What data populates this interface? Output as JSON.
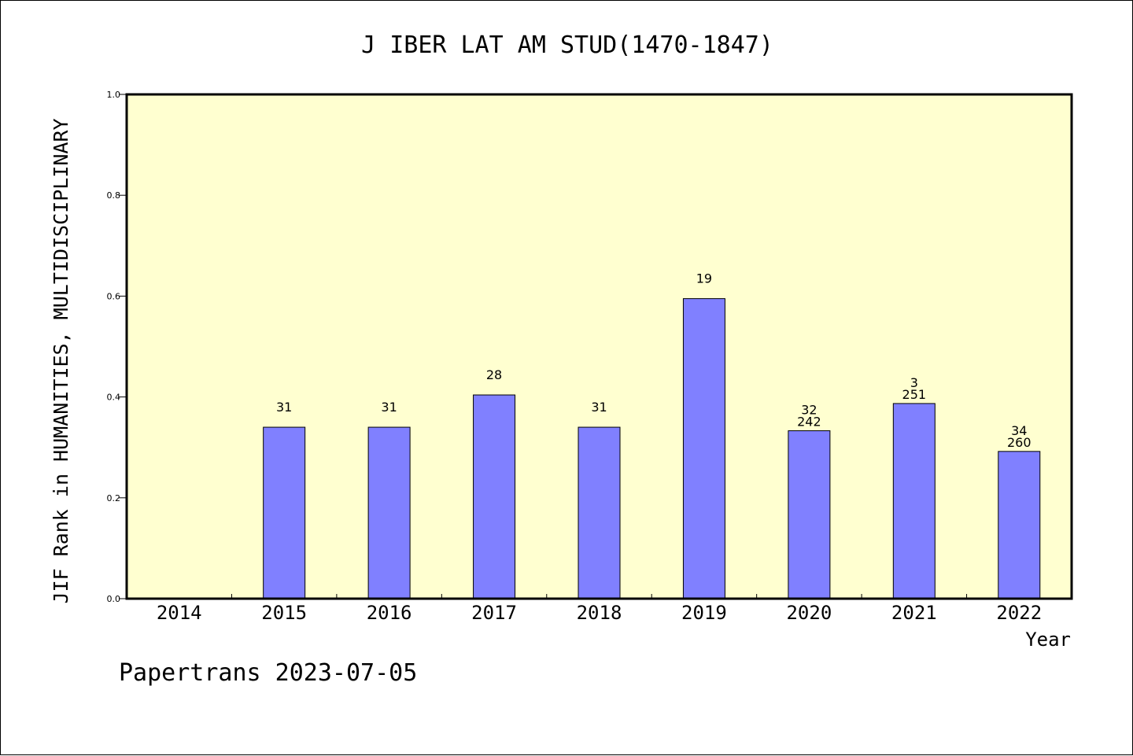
{
  "chart_data": {
    "type": "bar",
    "title": "J IBER LAT AM STUD(1470-1847)",
    "xlabel": "Year",
    "ylabel": "JIF Rank in HUMANITIES, MULTIDISCIPLINARY",
    "ylim": [
      0,
      1.0
    ],
    "yticks": [
      "0.0",
      "0.2",
      "0.4",
      "0.6",
      "0.8",
      "1.0"
    ],
    "grid": false,
    "categories": [
      "2014",
      "2015",
      "2016",
      "2017",
      "2018",
      "2019",
      "2020",
      "2021",
      "2022"
    ],
    "values": [
      null,
      0.34,
      0.34,
      0.404,
      0.34,
      0.595,
      0.333,
      0.387,
      0.292
    ],
    "bar_labels": [
      [],
      [
        "31"
      ],
      [
        "31"
      ],
      [
        "28"
      ],
      [
        "31"
      ],
      [
        "19"
      ],
      [
        "32",
        "242"
      ],
      [
        "3",
        "251"
      ],
      [
        "34",
        "260"
      ]
    ],
    "colors": {
      "bar": "#8080ff",
      "plot_background": "#ffffd0",
      "axis": "#000000"
    }
  },
  "footer": "Papertrans 2023-07-05"
}
